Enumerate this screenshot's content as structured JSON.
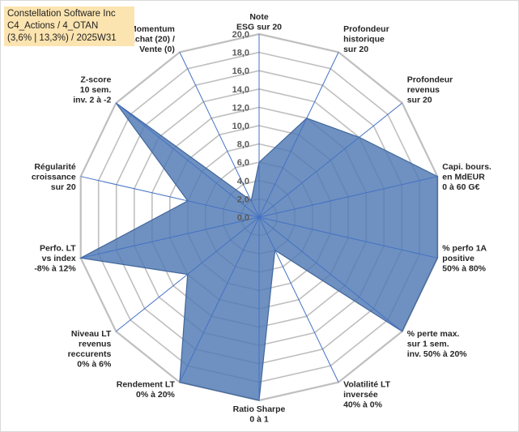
{
  "chart_data": {
    "type": "radar",
    "title_lines": [
      "Constellation Software Inc",
      "C4_Actions / 4_OTAN",
      "(3,6% | 13,3%) / 2025W31"
    ],
    "rlim": [
      0,
      20
    ],
    "tick_labels": [
      "0,0",
      "2,0",
      "4,0",
      "6,0",
      "8,0",
      "10,0",
      "12,0",
      "14,0",
      "16,0",
      "18,0",
      "20,0"
    ],
    "categories": [
      [
        "Note",
        "ESG sur 20"
      ],
      [
        "Profondeur",
        "historique",
        "sur 20"
      ],
      [
        "Profondeur",
        "revenus",
        "sur 20"
      ],
      [
        "Capi. bours.",
        "en MdEUR",
        "0 à 60 G€"
      ],
      [
        "% perfo 1A",
        "positive",
        "50% à 80%"
      ],
      [
        "% perte max.",
        "sur 1 sem.",
        "inv. 50% à 20%"
      ],
      [
        "Volatilité LT",
        "inversée",
        "40% à 0%"
      ],
      [
        "Ratio Sharpe",
        "0 à 1"
      ],
      [
        "Rendement LT",
        "0% à 20%"
      ],
      [
        "Niveau LT",
        "revenus",
        "reccurents",
        "0% à 6%"
      ],
      [
        "Perfo. LT",
        "vs index",
        "-8% à 12%"
      ],
      [
        "Régularité",
        "croissance",
        "sur 20"
      ],
      [
        "Z-score",
        "10 sem.",
        "inv. 2 à -2"
      ],
      [
        "Momentum",
        "Achat (20) /",
        "Vente (0)"
      ]
    ],
    "series": [
      {
        "values": [
          6,
          12,
          14,
          20,
          20,
          20,
          4,
          20,
          20,
          10,
          20,
          8,
          20,
          2
        ]
      }
    ],
    "colors": {
      "fill": "#4f79b3",
      "fill_opacity": 0.82,
      "stroke": "#41679c",
      "grid": "#bfbfbf",
      "spoke": "#4472c4"
    }
  }
}
